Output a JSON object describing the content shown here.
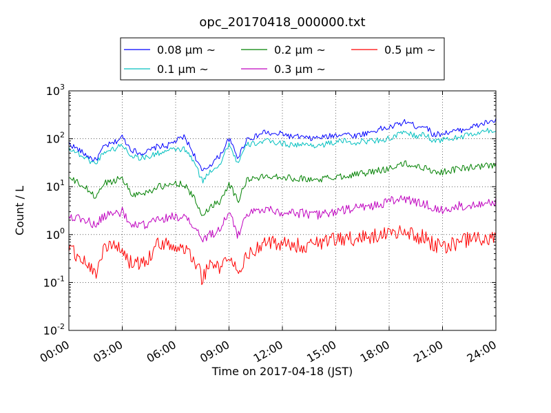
{
  "chart_data": {
    "type": "line",
    "title": "opc_20170418_000000.txt",
    "xlabel": "Time on 2017-04-18 (JST)",
    "ylabel": "Count / L",
    "yscale": "log",
    "xlim": [
      "00:00",
      "24:00"
    ],
    "ylim": [
      0.01,
      1000
    ],
    "grid": true,
    "legend_position": "top-center, above plot",
    "xticks": [
      "00:00",
      "03:00",
      "06:00",
      "09:00",
      "12:00",
      "15:00",
      "18:00",
      "21:00",
      "24:00"
    ],
    "yticks": [
      {
        "base": "10",
        "exp": "-2",
        "value": 0.01
      },
      {
        "base": "10",
        "exp": "-1",
        "value": 0.1
      },
      {
        "base": "10",
        "exp": "0",
        "value": 1
      },
      {
        "base": "10",
        "exp": "1",
        "value": 10
      },
      {
        "base": "10",
        "exp": "2",
        "value": 100
      },
      {
        "base": "10",
        "exp": "3",
        "value": 1000
      }
    ],
    "x": [
      "00:00",
      "00:30",
      "01:00",
      "01:30",
      "02:00",
      "02:30",
      "03:00",
      "03:30",
      "04:00",
      "04:30",
      "05:00",
      "05:30",
      "06:00",
      "06:30",
      "07:00",
      "07:30",
      "08:00",
      "08:30",
      "09:00",
      "09:30",
      "10:00",
      "10:30",
      "11:00",
      "11:30",
      "12:00",
      "12:30",
      "13:00",
      "13:30",
      "14:00",
      "14:30",
      "15:00",
      "15:30",
      "16:00",
      "16:30",
      "17:00",
      "17:30",
      "18:00",
      "18:30",
      "19:00",
      "19:30",
      "20:00",
      "20:30",
      "21:00",
      "21:30",
      "22:00",
      "22:30",
      "23:00",
      "23:30",
      "24:00"
    ],
    "series": [
      {
        "name": "0.08 μm ~",
        "color": "#0000ff",
        "values": [
          80,
          60,
          45,
          35,
          70,
          80,
          110,
          60,
          50,
          55,
          70,
          70,
          90,
          110,
          50,
          20,
          30,
          45,
          100,
          40,
          100,
          110,
          140,
          120,
          130,
          110,
          110,
          100,
          105,
          110,
          120,
          130,
          115,
          125,
          140,
          160,
          170,
          200,
          230,
          180,
          190,
          120,
          130,
          140,
          150,
          170,
          190,
          220,
          240
        ]
      },
      {
        "name": "0.1 μm ~",
        "color": "#00bfbf",
        "values": [
          65,
          50,
          38,
          30,
          55,
          60,
          75,
          45,
          40,
          42,
          50,
          55,
          60,
          60,
          35,
          13,
          22,
          30,
          80,
          30,
          75,
          80,
          90,
          85,
          80,
          75,
          75,
          75,
          72,
          78,
          85,
          90,
          82,
          88,
          90,
          95,
          100,
          120,
          140,
          110,
          125,
          90,
          95,
          100,
          110,
          120,
          130,
          145,
          150
        ]
      },
      {
        "name": "0.2 μm ~",
        "color": "#008000",
        "values": [
          15,
          12,
          9,
          6,
          12,
          13,
          16,
          7,
          7,
          8,
          10,
          10,
          12,
          11,
          6,
          2.5,
          4,
          5,
          12,
          5,
          14,
          15,
          16,
          17,
          16,
          15,
          15,
          14,
          14,
          15,
          16,
          17,
          18,
          19,
          20,
          22,
          24,
          28,
          30,
          26,
          25,
          21,
          20,
          22,
          24,
          25,
          26,
          27,
          27
        ]
      },
      {
        "name": "0.3 μm ~",
        "color": "#bf00bf",
        "values": [
          2.5,
          2.2,
          2.0,
          1.5,
          2.5,
          2.8,
          3.0,
          1.5,
          1.5,
          1.7,
          2.0,
          2.2,
          2.5,
          2.2,
          1.5,
          0.8,
          1.0,
          1.4,
          3.0,
          0.9,
          3.0,
          3.0,
          3.5,
          3.2,
          3.0,
          2.8,
          2.8,
          2.7,
          2.6,
          2.8,
          3.0,
          3.2,
          3.5,
          3.8,
          4.0,
          4.2,
          5.0,
          5.5,
          5.5,
          4.5,
          4.5,
          3.5,
          3.2,
          3.5,
          4.0,
          4.2,
          4.5,
          4.8,
          4.8
        ]
      },
      {
        "name": "0.5 μm ~",
        "color": "#ff0000",
        "values": [
          0.5,
          0.35,
          0.25,
          0.15,
          0.6,
          0.55,
          0.45,
          0.25,
          0.25,
          0.35,
          0.6,
          0.7,
          0.5,
          0.5,
          0.35,
          0.12,
          0.25,
          0.2,
          0.35,
          0.15,
          0.4,
          0.5,
          0.6,
          0.7,
          0.65,
          0.6,
          0.6,
          0.6,
          0.65,
          0.7,
          0.8,
          0.85,
          0.8,
          0.85,
          0.9,
          0.95,
          1.0,
          1.1,
          1.2,
          0.9,
          0.9,
          0.6,
          0.55,
          0.6,
          0.7,
          0.8,
          0.85,
          0.8,
          0.8
        ]
      }
    ]
  }
}
